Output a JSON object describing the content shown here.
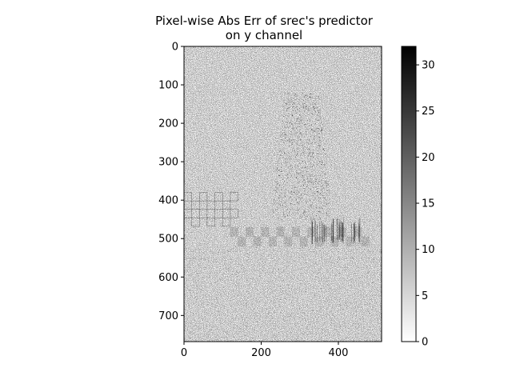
{
  "chart_data": {
    "type": "heatmap",
    "title_line1": "Pixel-wise Abs Err of srec's predictor",
    "title_line2": "on y channel",
    "xlabel": "",
    "ylabel": "",
    "colormap": "gray_r",
    "x_range": [
      0,
      512
    ],
    "y_range": [
      0,
      768
    ],
    "y_inverted": true,
    "x_ticks": [
      0,
      200,
      400
    ],
    "y_ticks": [
      0,
      100,
      200,
      300,
      400,
      500,
      600,
      700
    ],
    "colorbar": {
      "range": [
        0,
        32
      ],
      "ticks": [
        0,
        5,
        10,
        15,
        20,
        25,
        30
      ]
    },
    "grid": false
  }
}
